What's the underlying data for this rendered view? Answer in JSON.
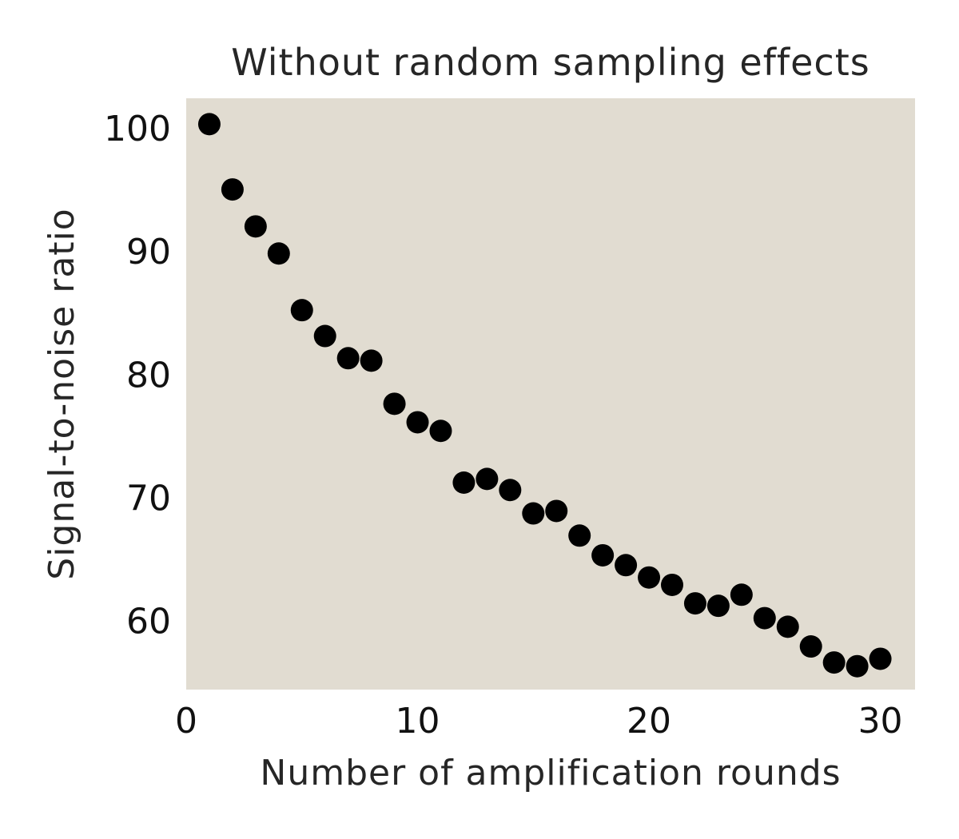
{
  "chart_data": {
    "type": "scatter",
    "title": "Without random sampling effects",
    "xlabel": "Number of amplification rounds",
    "ylabel": "Signal-to-noise ratio",
    "xlim": [
      0,
      31.5
    ],
    "ylim": [
      54.5,
      102.5
    ],
    "xticks": [
      0,
      10,
      20,
      30
    ],
    "yticks": [
      60,
      70,
      80,
      90,
      100
    ],
    "grid": false,
    "background_color": "#e1dcd1",
    "marker_color": "#000000",
    "series": [
      {
        "x": [
          1,
          2,
          3,
          4,
          5,
          6,
          7,
          8,
          9,
          10,
          11,
          12,
          13,
          14,
          15,
          16,
          17,
          18,
          19,
          20,
          21,
          22,
          23,
          24,
          25,
          26,
          27,
          28,
          29,
          30
        ],
        "y": [
          100.4,
          95.1,
          92.1,
          89.9,
          85.3,
          83.2,
          81.4,
          81.2,
          77.7,
          76.2,
          75.5,
          71.3,
          71.6,
          70.7,
          68.8,
          69.0,
          67.0,
          65.4,
          64.6,
          63.6,
          63.0,
          61.5,
          61.3,
          62.2,
          60.3,
          59.6,
          58.0,
          56.7,
          56.4,
          57.0
        ]
      }
    ]
  }
}
